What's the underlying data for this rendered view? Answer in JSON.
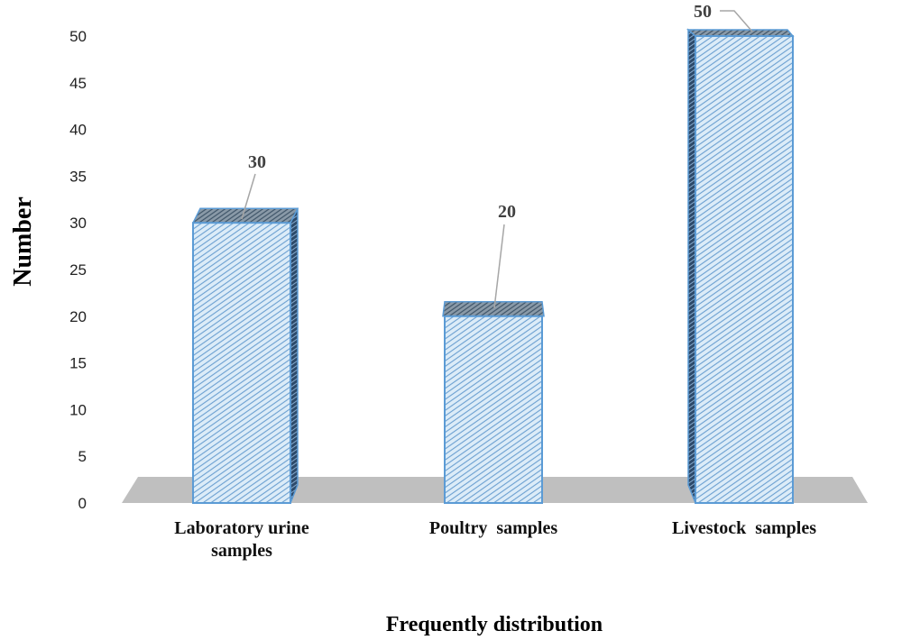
{
  "chart_data": {
    "type": "bar",
    "style": "3d-column",
    "categories": [
      [
        "Laboratory urine",
        "samples"
      ],
      [
        "Poultry  samples"
      ],
      [
        "Livestock  samples"
      ]
    ],
    "values": [
      30,
      20,
      50
    ],
    "data_labels": [
      "30",
      "20",
      "50"
    ],
    "xlabel": "Frequently distribution",
    "ylabel": "Number",
    "ylim": [
      0,
      50
    ],
    "yticks": [
      0,
      5,
      10,
      15,
      20,
      25,
      30,
      35,
      40,
      45,
      50
    ],
    "grid": false,
    "legend": "none",
    "colors": {
      "bar_fill": "#dcecf8",
      "bar_hatch": "#6a9fd0",
      "bar_edge": "#5b9bd5",
      "bar_top": "#8a9aa8",
      "bar_side": "#2d4a6a",
      "floor": "#bfbfbf",
      "leader_line": "#a6a6a6"
    }
  }
}
